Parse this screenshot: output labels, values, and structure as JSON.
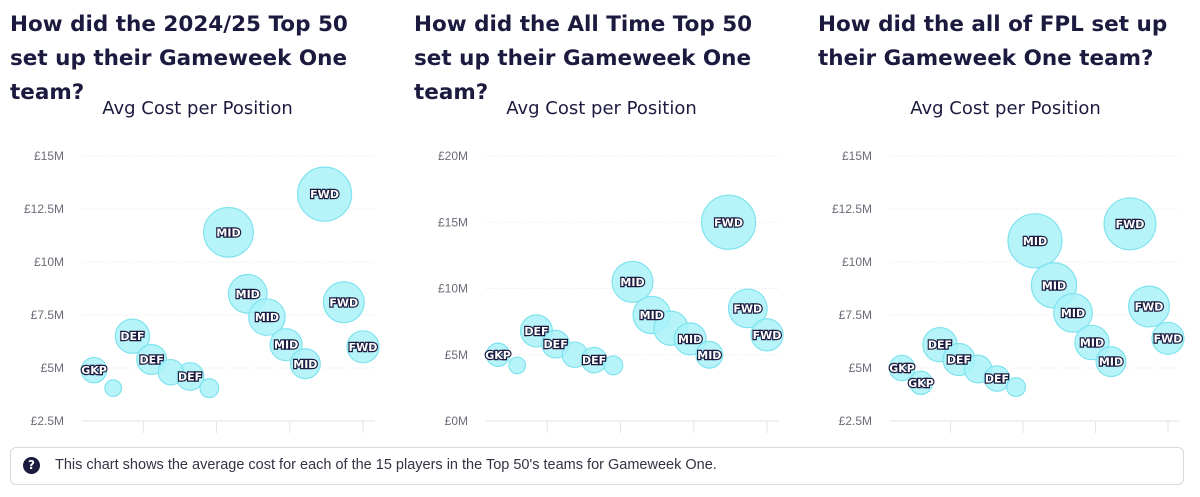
{
  "footer": {
    "icon": "question-circle-icon",
    "text": "This chart shows the average cost for each of the 15 players in the Top 50's teams for Gameweek One."
  },
  "colors": {
    "bubble_fill": "#a9f2f9",
    "bubble_stroke": "#7fe3ee",
    "grid": "#e3e3e8",
    "tick": "#6b6b78",
    "title": "#1c1b3f"
  },
  "chart_data": [
    {
      "type": "scatter",
      "title": "How did the 2024/25 Top 50 set up their Gameweek One team?",
      "subtitle": "Avg Cost per Position",
      "yticks": [
        "£15M",
        "£12.5M",
        "£10M",
        "£7.5M",
        "£5M",
        "£2.5M"
      ],
      "ylim": [
        2.5,
        15
      ],
      "xlim": [
        0,
        15
      ],
      "points": [
        {
          "x": 1,
          "y": 4.9,
          "label": "GKP",
          "size": 0.35
        },
        {
          "x": 2,
          "y": 4.05,
          "label": "",
          "size": 0.15
        },
        {
          "x": 3,
          "y": 6.5,
          "label": "DEF",
          "size": 0.55
        },
        {
          "x": 4,
          "y": 5.4,
          "label": "DEF",
          "size": 0.45
        },
        {
          "x": 5,
          "y": 4.8,
          "label": "",
          "size": 0.35
        },
        {
          "x": 6,
          "y": 4.6,
          "label": "DEF",
          "size": 0.4
        },
        {
          "x": 7,
          "y": 4.05,
          "label": "",
          "size": 0.2
        },
        {
          "x": 8,
          "y": 11.4,
          "label": "MID",
          "size": 0.9
        },
        {
          "x": 9,
          "y": 8.5,
          "label": "MID",
          "size": 0.65
        },
        {
          "x": 10,
          "y": 7.4,
          "label": "MID",
          "size": 0.6
        },
        {
          "x": 11,
          "y": 6.1,
          "label": "MID",
          "size": 0.5
        },
        {
          "x": 12,
          "y": 5.2,
          "label": "MID",
          "size": 0.45
        },
        {
          "x": 13,
          "y": 13.2,
          "label": "FWD",
          "size": 1.0
        },
        {
          "x": 14,
          "y": 8.1,
          "label": "FWD",
          "size": 0.7
        },
        {
          "x": 15,
          "y": 6.0,
          "label": "FWD",
          "size": 0.5
        }
      ]
    },
    {
      "type": "scatter",
      "title": "How did the All Time Top 50 set up their Gameweek One team?",
      "subtitle": "Avg Cost per Position",
      "yticks": [
        "£20M",
        "£15M",
        "£10M",
        "£5M",
        "£0M"
      ],
      "ylim": [
        0,
        20
      ],
      "xlim": [
        0,
        15
      ],
      "points": [
        {
          "x": 1,
          "y": 5.0,
          "label": "GKP",
          "size": 0.3
        },
        {
          "x": 2,
          "y": 4.2,
          "label": "",
          "size": 0.15
        },
        {
          "x": 3,
          "y": 6.8,
          "label": "DEF",
          "size": 0.5
        },
        {
          "x": 4,
          "y": 5.8,
          "label": "DEF",
          "size": 0.4
        },
        {
          "x": 5,
          "y": 5.0,
          "label": "",
          "size": 0.35
        },
        {
          "x": 6,
          "y": 4.6,
          "label": "DEF",
          "size": 0.35
        },
        {
          "x": 7,
          "y": 4.2,
          "label": "",
          "size": 0.2
        },
        {
          "x": 8,
          "y": 10.5,
          "label": "MID",
          "size": 0.7
        },
        {
          "x": 9,
          "y": 8.0,
          "label": "MID",
          "size": 0.62
        },
        {
          "x": 10,
          "y": 7.0,
          "label": "",
          "size": 0.55
        },
        {
          "x": 11,
          "y": 6.2,
          "label": "MID",
          "size": 0.5
        },
        {
          "x": 12,
          "y": 5.0,
          "label": "MID",
          "size": 0.38
        },
        {
          "x": 13,
          "y": 15.0,
          "label": "FWD",
          "size": 1.0
        },
        {
          "x": 14,
          "y": 8.5,
          "label": "FWD",
          "size": 0.65
        },
        {
          "x": 15,
          "y": 6.5,
          "label": "FWD",
          "size": 0.5
        }
      ]
    },
    {
      "type": "scatter",
      "title": "How did the all of FPL set up their Gameweek One team?",
      "subtitle": "Avg Cost per Position",
      "yticks": [
        "£15M",
        "£12.5M",
        "£10M",
        "£7.5M",
        "£5M",
        "£2.5M"
      ],
      "ylim": [
        2.5,
        15
      ],
      "xlim": [
        0,
        15
      ],
      "points": [
        {
          "x": 1,
          "y": 5.0,
          "label": "GKP",
          "size": 0.35
        },
        {
          "x": 2,
          "y": 4.3,
          "label": "GKP",
          "size": 0.3
        },
        {
          "x": 3,
          "y": 6.1,
          "label": "DEF",
          "size": 0.55
        },
        {
          "x": 4,
          "y": 5.4,
          "label": "DEF",
          "size": 0.5
        },
        {
          "x": 5,
          "y": 4.95,
          "label": "",
          "size": 0.4
        },
        {
          "x": 6,
          "y": 4.5,
          "label": "DEF",
          "size": 0.35
        },
        {
          "x": 7,
          "y": 4.1,
          "label": "",
          "size": 0.2
        },
        {
          "x": 8,
          "y": 11.0,
          "label": "MID",
          "size": 1.0
        },
        {
          "x": 9,
          "y": 8.9,
          "label": "MID",
          "size": 0.8
        },
        {
          "x": 10,
          "y": 7.6,
          "label": "MID",
          "size": 0.65
        },
        {
          "x": 11,
          "y": 6.2,
          "label": "MID",
          "size": 0.55
        },
        {
          "x": 12,
          "y": 5.3,
          "label": "MID",
          "size": 0.45
        },
        {
          "x": 13,
          "y": 11.8,
          "label": "FWD",
          "size": 0.95
        },
        {
          "x": 14,
          "y": 7.9,
          "label": "FWD",
          "size": 0.7
        },
        {
          "x": 15,
          "y": 6.4,
          "label": "FWD",
          "size": 0.5
        }
      ]
    }
  ]
}
